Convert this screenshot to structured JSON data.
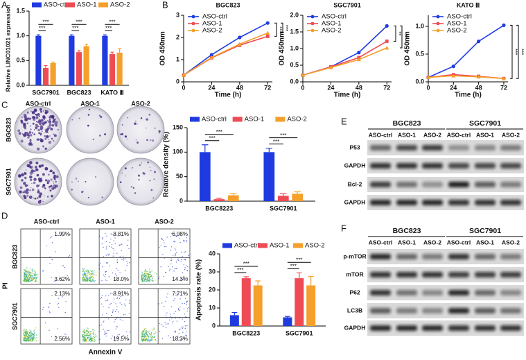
{
  "panel_letters": [
    "A",
    "B",
    "C",
    "D",
    "E",
    "F"
  ],
  "chart_data": [
    {
      "type": "bar",
      "y_label": "Relative LINC01021 expression",
      "categories": [
        "SGC7901",
        "BGC823",
        "KATO Ⅲ"
      ],
      "ylim": [
        0,
        1.5
      ],
      "yticks": [
        {
          "value": 0,
          "label": "0.0"
        },
        0.5,
        {
          "value": 1,
          "label": "1.0"
        },
        1.5
      ],
      "legend": "top",
      "series": [
        {
          "name": "ASO-ctr",
          "color": "#1f3be0",
          "values": [
            1.0,
            1.0,
            1.0
          ],
          "errors": [
            0.02,
            0.02,
            0.02
          ]
        },
        {
          "name": "ASO-1",
          "color": "#ee4b55",
          "values": [
            0.35,
            0.67,
            0.63
          ],
          "errors": [
            0.05,
            0.03,
            0.04
          ]
        },
        {
          "name": "ASO-2",
          "color": "#f5a02a",
          "values": [
            0.45,
            0.79,
            0.66
          ],
          "errors": [
            0.02,
            0.04,
            0.08
          ]
        }
      ],
      "significance": [
        {
          "category": 0,
          "pair": [
            0,
            1
          ],
          "label": "***"
        },
        {
          "category": 0,
          "pair": [
            0,
            2
          ],
          "label": "***"
        },
        {
          "category": 1,
          "pair": [
            0,
            1
          ],
          "label": "***"
        },
        {
          "category": 1,
          "pair": [
            0,
            2
          ],
          "label": "***"
        },
        {
          "category": 2,
          "pair": [
            0,
            1
          ],
          "label": "***"
        },
        {
          "category": 2,
          "pair": [
            0,
            2
          ],
          "label": "***"
        }
      ]
    },
    {
      "type": "line",
      "title": "BGC823",
      "x_label": "Time (h)",
      "y_label": "OD 450nm",
      "x": [
        0,
        24,
        48,
        72
      ],
      "xlim": [
        0,
        76
      ],
      "xticks": [
        0,
        24,
        48,
        72
      ],
      "ylim": [
        0,
        3
      ],
      "yticks": [
        0,
        1,
        2,
        3
      ],
      "legend": "upper left",
      "series": [
        {
          "name": "ASO-ctrl",
          "color": "#1f3be0",
          "values": [
            0.3,
            1.22,
            2.0,
            2.65
          ]
        },
        {
          "name": "ASO-1",
          "color": "#ee4b55",
          "values": [
            0.3,
            1.08,
            1.65,
            2.05
          ]
        },
        {
          "name": "ASO-2",
          "color": "#f5a02a",
          "values": [
            0.3,
            1.1,
            1.7,
            2.2
          ]
        }
      ],
      "significance": [
        {
          "pair": [
            0,
            1
          ],
          "label": "***"
        },
        {
          "pair": [
            0,
            2
          ],
          "label": "***"
        }
      ]
    },
    {
      "type": "line",
      "title": "SGC7901",
      "x_label": "Time (h)",
      "y_label": "OD 450nm",
      "x": [
        0,
        24,
        48,
        72
      ],
      "xlim": [
        0,
        76
      ],
      "xticks": [
        0,
        24,
        48,
        72
      ],
      "ylim": [
        0,
        2
      ],
      "yticks": [
        {
          "value": 0,
          "label": "0.0"
        },
        0.5,
        {
          "value": 1,
          "label": "1.0"
        },
        1.5,
        {
          "value": 2,
          "label": "2.0"
        }
      ],
      "legend": "upper left",
      "series": [
        {
          "name": "ASO-ctrl",
          "color": "#1f3be0",
          "values": [
            0.2,
            0.45,
            0.88,
            1.68
          ]
        },
        {
          "name": "ASO-1",
          "color": "#ee4b55",
          "values": [
            0.2,
            0.45,
            0.73,
            1.22
          ]
        },
        {
          "name": "ASO-2",
          "color": "#f5a02a",
          "values": [
            0.2,
            0.43,
            0.67,
            1.02
          ]
        }
      ],
      "significance": [
        {
          "pair": [
            0,
            1
          ],
          "label": "**"
        },
        {
          "pair": [
            0,
            2
          ],
          "label": "**"
        }
      ]
    },
    {
      "type": "line",
      "title": "KATO Ⅲ",
      "x_label": "Time (h)",
      "y_label": "OD 450nm",
      "x": [
        0,
        24,
        48,
        72
      ],
      "xlim": [
        0,
        76
      ],
      "xticks": [
        0,
        24,
        48,
        72
      ],
      "ylim": [
        0,
        1.2
      ],
      "yticks": [
        {
          "value": 0,
          "label": "0.0"
        },
        0.5,
        {
          "value": 1,
          "label": "1.0"
        }
      ],
      "legend": "upper left",
      "series": [
        {
          "name": "ASO-ctrl",
          "color": "#1f3be0",
          "values": [
            0.08,
            0.28,
            0.73,
            1.02
          ]
        },
        {
          "name": "ASO-1",
          "color": "#ee4b55",
          "values": [
            0.08,
            0.13,
            0.1,
            0.06
          ]
        },
        {
          "name": "ASO-2",
          "color": "#f5a02a",
          "values": [
            0.08,
            0.11,
            0.09,
            0.06
          ]
        }
      ],
      "significance": [
        {
          "pair": [
            0,
            1
          ],
          "label": "***"
        },
        {
          "pair": [
            0,
            2
          ],
          "label": "***"
        }
      ]
    },
    {
      "type": "bar",
      "y_label": "Relative density (%)",
      "categories": [
        "BGC8223",
        "SGC7901"
      ],
      "ylim": [
        0,
        150
      ],
      "yticks": [
        0,
        50,
        100,
        150
      ],
      "legend": "top",
      "series": [
        {
          "name": "ASO-ctrl",
          "color": "#1f3be0",
          "values": [
            100,
            100
          ],
          "errors": [
            15,
            8
          ]
        },
        {
          "name": "ASO-1",
          "color": "#ee4b55",
          "values": [
            4,
            11
          ],
          "errors": [
            2,
            4
          ]
        },
        {
          "name": "ASO-2",
          "color": "#f5a02a",
          "values": [
            12,
            15
          ],
          "errors": [
            3,
            4
          ]
        }
      ],
      "significance": [
        {
          "category": 0,
          "pair": [
            0,
            1
          ],
          "label": "***"
        },
        {
          "category": 0,
          "pair": [
            0,
            2
          ],
          "label": "***"
        },
        {
          "category": 1,
          "pair": [
            0,
            1
          ],
          "label": "***"
        },
        {
          "category": 1,
          "pair": [
            0,
            2
          ],
          "label": "***"
        }
      ]
    },
    {
      "type": "bar",
      "y_label": "Apoptosis rate (%)",
      "categories": [
        "BGC8223",
        "SGC7901"
      ],
      "ylim": [
        0,
        40
      ],
      "yticks": [
        0,
        10,
        20,
        30,
        40
      ],
      "legend": "top",
      "series": [
        {
          "name": "ASO-ctrl",
          "color": "#1f3be0",
          "values": [
            6,
            4.8
          ],
          "errors": [
            1.5,
            0.5
          ]
        },
        {
          "name": "ASO-1",
          "color": "#ee4b55",
          "values": [
            26.5,
            26.5
          ],
          "errors": [
            0.8,
            3
          ]
        },
        {
          "name": "ASO-2",
          "color": "#f5a02a",
          "values": [
            22.5,
            22.5
          ],
          "errors": [
            2.5,
            5
          ]
        }
      ],
      "significance": [
        {
          "category": 0,
          "pair": [
            0,
            1
          ],
          "label": "***"
        },
        {
          "category": 0,
          "pair": [
            0,
            2
          ],
          "label": "***"
        },
        {
          "category": 1,
          "pair": [
            0,
            1
          ],
          "label": "***"
        },
        {
          "category": 1,
          "pair": [
            0,
            2
          ],
          "label": "***"
        }
      ]
    }
  ],
  "colony_assay": {
    "columns": [
      "ASO-ctrl",
      "ASO-1",
      "ASO-2"
    ],
    "rows": [
      "BGC823",
      "SGC7901"
    ]
  },
  "flow_cytometry": {
    "columns": [
      "ASO-ctrl",
      "ASO-1",
      "ASO-2"
    ],
    "rows": [
      "BGC823",
      "SGC7901"
    ],
    "quadrants": [
      [
        [
          "1.99%",
          "3.62%"
        ],
        [
          "8.81%",
          "18.0%"
        ],
        [
          "6.08%",
          "14.3%"
        ]
      ],
      [
        [
          "2.13%",
          "2.56%"
        ],
        [
          "8.91%",
          "19.5%"
        ],
        [
          "7.71%",
          "18.3%"
        ]
      ]
    ],
    "y_label": "PI",
    "x_label": "Annexin V"
  },
  "blot_e": {
    "groups": [
      "BGC823",
      "SGC7901"
    ],
    "lanes": [
      "ASO-ctrl",
      "ASO-1",
      "ASO-2"
    ],
    "rows": [
      "P53",
      "GAPDH",
      "Bcl-2",
      "GAPDH"
    ]
  },
  "blot_f": {
    "groups": [
      "BGC823",
      "SGC7901"
    ],
    "lanes": [
      "ASO-ctrl",
      "ASO-1",
      "ASO-2"
    ],
    "rows": [
      "p-mTOR",
      "mTOR",
      "P62",
      "LC3B",
      "GAPDH"
    ]
  }
}
